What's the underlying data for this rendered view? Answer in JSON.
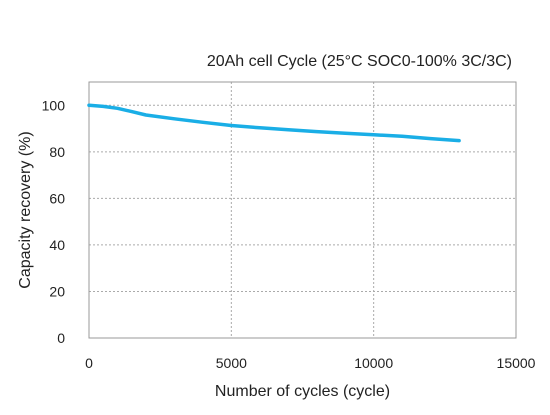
{
  "chart_data": {
    "type": "line",
    "title": "20Ah cell Cycle (25°C SOC0-100% 3C/3C)",
    "xlabel": "Number of cycles (cycle)",
    "ylabel": "Capacity recovery (%)",
    "xlim": [
      0,
      15000
    ],
    "ylim": [
      0,
      110
    ],
    "xticks": [
      0,
      5000,
      10000,
      15000
    ],
    "yticks": [
      0,
      20,
      40,
      60,
      80,
      100
    ],
    "grid": true,
    "line_color": "#1aaee6",
    "series": [
      {
        "x": [
          0,
          500,
          1000,
          1500,
          2000,
          3000,
          4000,
          5000,
          6000,
          7000,
          8000,
          9000,
          10000,
          11000,
          12000,
          13000
        ],
        "y": [
          100,
          99.5,
          98.7,
          97.3,
          95.8,
          94.2,
          92.7,
          91.3,
          90.3,
          89.5,
          88.7,
          88.0,
          87.3,
          86.7,
          85.7,
          84.8
        ]
      }
    ]
  }
}
